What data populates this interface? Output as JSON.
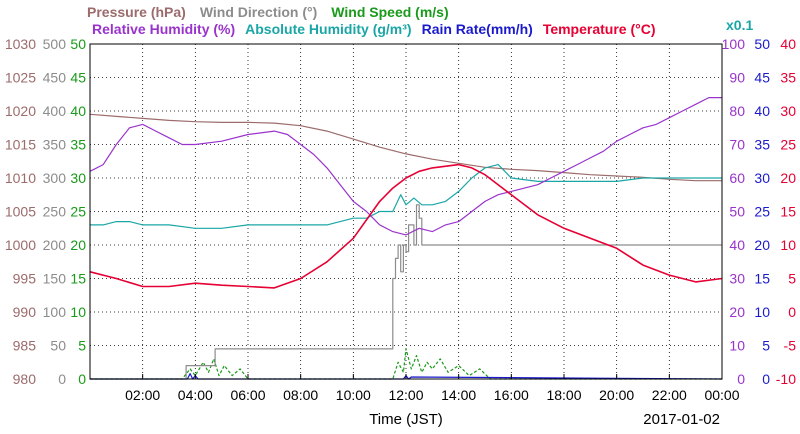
{
  "chart_data": {
    "type": "line",
    "legend": {
      "row1": [
        {
          "name": "Pressure (hPa)",
          "color": "#9c6b6b"
        },
        {
          "name": "Wind Direction (°)",
          "color": "#8c8c8c"
        },
        {
          "name": "Wind Speed (m/s)",
          "color": "#1a9a1a"
        }
      ],
      "row2": [
        {
          "name": "Relative Humidity (%)",
          "color": "#9933cc"
        },
        {
          "name": "Absolute Humidity (g/m³)",
          "color": "#1aa6a6"
        },
        {
          "name": "Rain Rate(mm/h)",
          "color": "#1a1acc"
        },
        {
          "name": "Temperature (°C)",
          "color": "#e60033"
        }
      ],
      "scale_note": {
        "text": "x0.1",
        "color": "#1aa6a6"
      }
    },
    "xlabel": "Time (JST)",
    "date_label": "2017-01-02",
    "x_ticks": [
      "02:00",
      "04:00",
      "06:00",
      "08:00",
      "10:00",
      "12:00",
      "14:00",
      "16:00",
      "18:00",
      "20:00",
      "22:00",
      "00:00"
    ],
    "x_range_hours": [
      0,
      24
    ],
    "axes": {
      "pressure": {
        "ticks": [
          "1030",
          "1025",
          "1020",
          "1015",
          "1010",
          "1005",
          "1000",
          "995",
          "990",
          "985",
          "980"
        ],
        "range": [
          980,
          1030
        ],
        "color": "#9c6b6b"
      },
      "wind_direction": {
        "ticks": [
          "500",
          "450",
          "400",
          "350",
          "300",
          "250",
          "200",
          "150",
          "100",
          "50",
          "0"
        ],
        "range": [
          0,
          500
        ],
        "color": "#8c8c8c"
      },
      "wind_speed": {
        "ticks": [
          "50",
          "45",
          "40",
          "35",
          "30",
          "25",
          "20",
          "15",
          "10",
          "5",
          "0"
        ],
        "range": [
          0,
          50
        ],
        "color": "#1a9a1a"
      },
      "relative_humidity": {
        "ticks": [
          "100",
          "90",
          "80",
          "70",
          "60",
          "50",
          "40",
          "30",
          "20",
          "10",
          "0"
        ],
        "range": [
          0,
          100
        ],
        "color": "#9933cc"
      },
      "rain_rate": {
        "ticks": [
          "50",
          "45",
          "40",
          "35",
          "30",
          "25",
          "20",
          "15",
          "10",
          "5",
          "0"
        ],
        "range": [
          0,
          50
        ],
        "color": "#1a1acc"
      },
      "temperature": {
        "ticks": [
          "40",
          "35",
          "30",
          "25",
          "20",
          "15",
          "10",
          "5",
          "0",
          "-5",
          "-10"
        ],
        "range": [
          -10,
          40
        ],
        "color": "#e60033"
      }
    },
    "grid": true,
    "series": [
      {
        "key": "pressure",
        "name": "Pressure (hPa)",
        "axis": "pressure",
        "color": "#9c6b6b",
        "x": [
          0,
          1,
          2,
          3,
          4,
          5,
          6,
          7,
          8,
          9,
          10,
          11,
          12,
          13,
          14,
          15,
          16,
          17,
          18,
          19,
          20,
          21,
          22,
          23,
          24
        ],
        "y": [
          1019.5,
          1019.2,
          1018.9,
          1018.6,
          1018.4,
          1018.3,
          1018.3,
          1018.2,
          1017.8,
          1017.0,
          1015.8,
          1014.6,
          1013.6,
          1012.8,
          1012.2,
          1011.6,
          1011.3,
          1011.1,
          1010.8,
          1010.5,
          1010.3,
          1010.1,
          1009.8,
          1009.6,
          1009.6
        ]
      },
      {
        "key": "wind_direction",
        "name": "Wind Direction (°)",
        "axis": "wind_direction",
        "color": "#8c8c8c",
        "step": true,
        "x": [
          0,
          3.6,
          3.65,
          4.7,
          4.75,
          11.4,
          11.5,
          11.6,
          11.7,
          11.8,
          11.9,
          12.0,
          12.1,
          12.3,
          12.4,
          12.5,
          12.6,
          12.8,
          24
        ],
        "y": [
          0,
          0,
          20,
          20,
          45,
          45,
          150,
          180,
          200,
          160,
          200,
          190,
          230,
          200,
          260,
          240,
          200,
          200,
          200
        ]
      },
      {
        "key": "wind_speed",
        "name": "Wind Speed (m/s)",
        "axis": "wind_speed",
        "color": "#1a9a1a",
        "dashed": true,
        "x": [
          0,
          3.5,
          3.8,
          4.0,
          4.3,
          4.5,
          4.7,
          4.9,
          5.1,
          5.4,
          5.7,
          6.0,
          11.5,
          11.7,
          11.9,
          12.0,
          12.2,
          12.4,
          12.6,
          12.8,
          13.0,
          13.3,
          13.6,
          14.0,
          14.4,
          14.8,
          15.2,
          24
        ],
        "y": [
          0,
          0,
          1.5,
          0.5,
          2.5,
          1.0,
          3.0,
          0.5,
          2.0,
          0.5,
          1.5,
          0,
          0,
          2.5,
          1.0,
          4.5,
          1.5,
          3.5,
          1.0,
          2.5,
          1.5,
          3.0,
          1.0,
          2.0,
          0.5,
          1.5,
          0,
          0
        ]
      },
      {
        "key": "relative_humidity",
        "name": "Relative Humidity (%)",
        "axis": "relative_humidity",
        "color": "#9933cc",
        "x": [
          0,
          0.5,
          1,
          1.5,
          2,
          2.5,
          3,
          3.5,
          4,
          5,
          6,
          7,
          7.5,
          8,
          8.5,
          9,
          9.5,
          10,
          10.5,
          11,
          11.5,
          12,
          12.5,
          13,
          13.5,
          14,
          14.5,
          15,
          15.5,
          16,
          16.5,
          17,
          17.5,
          18,
          18.5,
          19,
          19.5,
          20,
          20.5,
          21,
          21.5,
          22,
          22.5,
          23,
          23.5,
          24
        ],
        "y": [
          62,
          64,
          70,
          75,
          76,
          74,
          72,
          70,
          70,
          71,
          73,
          74,
          73,
          70,
          67,
          63,
          58,
          53,
          50,
          46,
          44,
          43,
          45,
          44,
          46,
          47,
          50,
          53,
          55,
          56,
          57,
          58,
          60,
          62,
          64,
          66,
          68,
          71,
          73,
          75,
          76,
          78,
          80,
          82,
          84,
          84
        ]
      },
      {
        "key": "absolute_humidity",
        "name": "Absolute Humidity (g/m³)",
        "axis": "relative_humidity",
        "color": "#1aa6a6",
        "x": [
          0,
          0.5,
          1,
          1.5,
          2,
          3,
          4,
          5,
          6,
          7,
          8,
          9,
          10,
          10.5,
          11,
          11.5,
          11.8,
          12,
          12.3,
          12.6,
          13,
          13.5,
          14,
          14.5,
          15,
          15.5,
          16,
          17,
          18,
          19,
          20,
          21,
          22,
          23,
          24
        ],
        "y": [
          46,
          46,
          47,
          47,
          46,
          46,
          45,
          45,
          46,
          46,
          46,
          46,
          48,
          48,
          50,
          50,
          55,
          52,
          54,
          52,
          52,
          53,
          56,
          60,
          63,
          64,
          60,
          59,
          59,
          59,
          59,
          60,
          60,
          60,
          60
        ]
      },
      {
        "key": "rain_rate",
        "name": "Rain Rate(mm/h)",
        "axis": "rain_rate",
        "color": "#1a1acc",
        "x": [
          0,
          3.7,
          3.8,
          3.9,
          4.0,
          4.1,
          11.9,
          12.0,
          12.1,
          12.2,
          24
        ],
        "y": [
          0,
          0,
          0.8,
          0,
          0.5,
          0,
          0,
          0.5,
          0,
          0.3,
          0
        ]
      },
      {
        "key": "temperature",
        "name": "Temperature (°C)",
        "axis": "temperature",
        "color": "#e60033",
        "x": [
          0,
          1,
          2,
          3,
          4,
          5,
          6,
          7,
          8,
          9,
          10,
          11,
          11.5,
          12,
          12.5,
          13,
          14,
          14.5,
          15,
          16,
          17,
          18,
          19,
          20,
          21,
          22,
          23,
          24
        ],
        "y": [
          6.0,
          5.0,
          3.8,
          3.8,
          4.3,
          4.0,
          3.8,
          3.6,
          5.0,
          7.5,
          11.0,
          16.5,
          18.5,
          20.0,
          21.0,
          21.5,
          22.0,
          21.5,
          20.5,
          17.5,
          14.5,
          12.5,
          11.0,
          9.5,
          7.0,
          5.5,
          4.5,
          5.0
        ]
      }
    ]
  }
}
